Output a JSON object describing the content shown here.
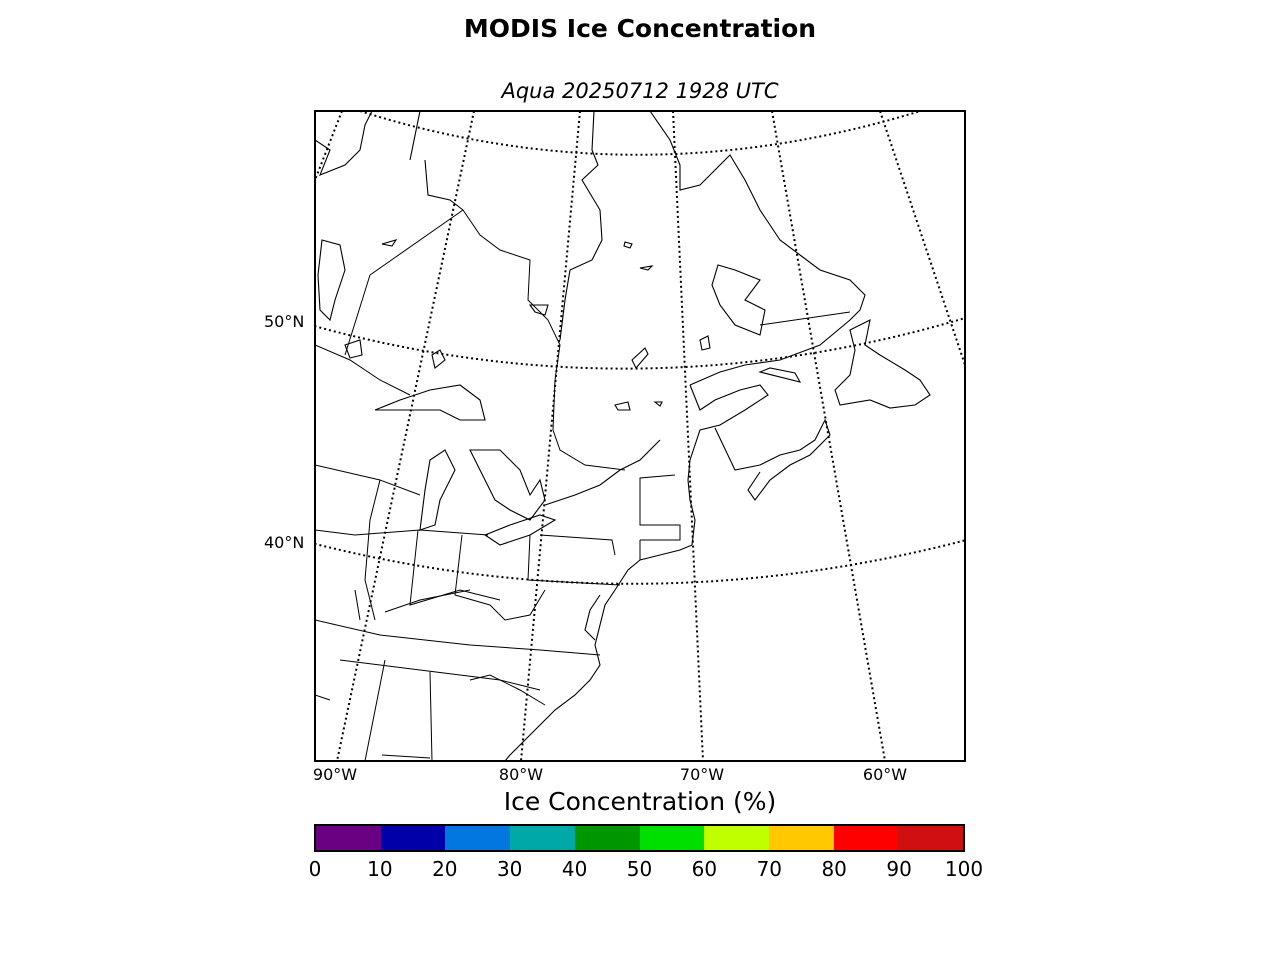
{
  "title": "MODIS Ice Concentration",
  "subtitle": "Aqua 20250712 1928 UTC",
  "lat_labels": [
    "50°N",
    "40°N"
  ],
  "lon_labels": [
    "90°W",
    "80°W",
    "70°W",
    "60°W"
  ],
  "colorbar": {
    "title": "Ice Concentration (%)",
    "ticks": [
      "0",
      "10",
      "20",
      "30",
      "40",
      "50",
      "60",
      "70",
      "80",
      "90",
      "100"
    ],
    "colors": [
      "#6a0082",
      "#0000a8",
      "#0078e0",
      "#00a8a8",
      "#009600",
      "#00e000",
      "#c0ff00",
      "#ffc800",
      "#ff0000",
      "#d01010"
    ]
  }
}
